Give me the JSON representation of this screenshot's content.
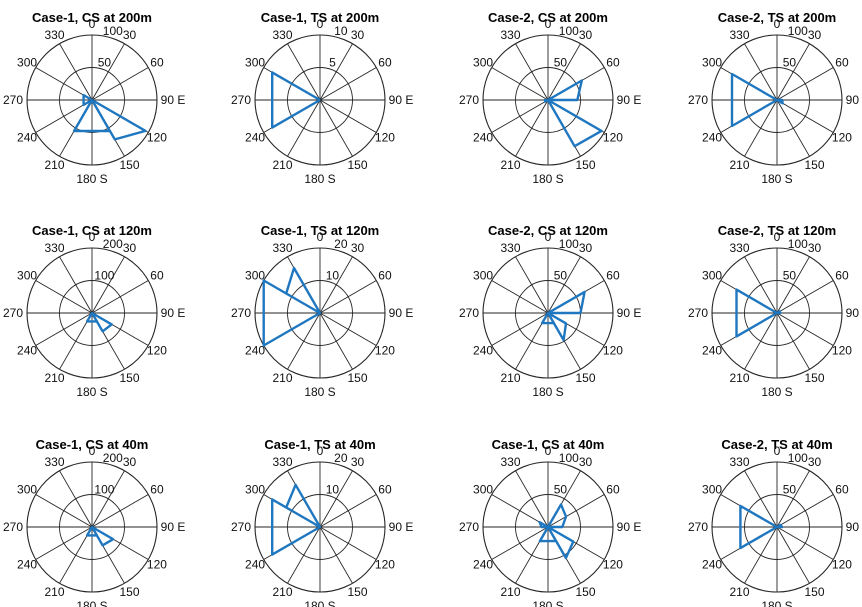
{
  "colors": {
    "series": "#1f77c0",
    "grid": "#262626"
  },
  "chart_data": [
    {
      "type": "polar",
      "title": "Case-1, CS at 200m",
      "r_ticks": [
        "50",
        "100"
      ],
      "r_max": 100,
      "angle_labels": [
        "0",
        "30",
        "60",
        "90 E",
        "120",
        "150",
        "180 S",
        "210",
        "240",
        "270",
        "300",
        "330"
      ],
      "series": [
        {
          "points": [
            [
              0,
              0
            ],
            [
              150,
              70
            ],
            [
              120,
              95
            ],
            [
              0,
              0
            ],
            [
              210,
              55
            ],
            [
              150,
              55
            ],
            [
              0,
              0
            ],
            [
              300,
              15
            ],
            [
              240,
              15
            ],
            [
              0,
              0
            ]
          ]
        }
      ]
    },
    {
      "type": "polar",
      "title": "Case-1, TS at 200m",
      "r_ticks": [
        "5",
        "10"
      ],
      "r_max": 10,
      "angle_labels": [
        "0",
        "30",
        "60",
        "90 E",
        "120",
        "150",
        "180 S",
        "210",
        "240",
        "270",
        "300",
        "330"
      ],
      "series": [
        {
          "points": [
            [
              0,
              0
            ],
            [
              300,
              8.5
            ],
            [
              240,
              8.5
            ],
            [
              0,
              0
            ]
          ]
        }
      ]
    },
    {
      "type": "polar",
      "title": "Case-2, CS at 200m",
      "r_ticks": [
        "50",
        "100"
      ],
      "r_max": 100,
      "angle_labels": [
        "0",
        "30",
        "60",
        "90 E",
        "120",
        "150",
        "180 S",
        "210",
        "240",
        "270",
        "300",
        "330"
      ],
      "series": [
        {
          "points": [
            [
              0,
              0
            ],
            [
              60,
              60
            ],
            [
              90,
              45
            ],
            [
              0,
              0
            ],
            [
              150,
              82
            ],
            [
              120,
              95
            ],
            [
              0,
              0
            ],
            [
              270,
              5
            ],
            [
              240,
              5
            ],
            [
              0,
              0
            ]
          ]
        }
      ]
    },
    {
      "type": "polar",
      "title": "Case-2, TS at 200m",
      "r_ticks": [
        "50",
        "100"
      ],
      "r_max": 100,
      "angle_labels": [
        "0",
        "30",
        "60",
        "90 E",
        "120",
        "150",
        "180 S",
        "210",
        "240",
        "270",
        "300",
        "330"
      ],
      "series": [
        {
          "points": [
            [
              0,
              0
            ],
            [
              300,
              80
            ],
            [
              240,
              80
            ],
            [
              0,
              0
            ],
            [
              120,
              10
            ],
            [
              90,
              8
            ],
            [
              0,
              0
            ]
          ]
        }
      ]
    },
    {
      "type": "polar",
      "title": "Case-1, CS at 120m",
      "r_ticks": [
        "100",
        "200"
      ],
      "r_max": 200,
      "angle_labels": [
        "0",
        "30",
        "60",
        "90 E",
        "120",
        "150",
        "180 S",
        "210",
        "240",
        "270",
        "300",
        "330"
      ],
      "series": [
        {
          "points": [
            [
              0,
              0
            ],
            [
              150,
              65
            ],
            [
              120,
              70
            ],
            [
              0,
              0
            ],
            [
              210,
              30
            ],
            [
              150,
              30
            ],
            [
              0,
              0
            ]
          ]
        }
      ]
    },
    {
      "type": "polar",
      "title": "Case-1, TS at 120m",
      "r_ticks": [
        "10",
        "20"
      ],
      "r_max": 20,
      "angle_labels": [
        "0",
        "30",
        "60",
        "90 E",
        "120",
        "150",
        "180 S",
        "210",
        "240",
        "270",
        "300",
        "330"
      ],
      "series": [
        {
          "points": [
            [
              0,
              0
            ],
            [
              330,
              16
            ],
            [
              300,
              12
            ],
            [
              0,
              0
            ],
            [
              300,
              20
            ],
            [
              240,
              20
            ],
            [
              0,
              0
            ]
          ]
        }
      ]
    },
    {
      "type": "polar",
      "title": "Case-2, CS at 120m",
      "r_ticks": [
        "50",
        "100"
      ],
      "r_max": 100,
      "angle_labels": [
        "0",
        "30",
        "60",
        "90 E",
        "120",
        "150",
        "180 S",
        "210",
        "240",
        "270",
        "300",
        "330"
      ],
      "series": [
        {
          "points": [
            [
              0,
              0
            ],
            [
              60,
              65
            ],
            [
              90,
              50
            ],
            [
              0,
              0
            ],
            [
              150,
              48
            ],
            [
              120,
              32
            ],
            [
              0,
              0
            ],
            [
              210,
              18
            ],
            [
              150,
              18
            ],
            [
              0,
              0
            ]
          ]
        }
      ]
    },
    {
      "type": "polar",
      "title": "Case-2, TS at 120m",
      "r_ticks": [
        "50",
        "100"
      ],
      "r_max": 100,
      "angle_labels": [
        "0",
        "30",
        "60",
        "90 E",
        "120",
        "150",
        "180 S",
        "210",
        "240",
        "270",
        "300",
        "330"
      ],
      "series": [
        {
          "points": [
            [
              0,
              0
            ],
            [
              300,
              72
            ],
            [
              240,
              72
            ],
            [
              0,
              0
            ],
            [
              90,
              5
            ],
            [
              60,
              5
            ],
            [
              0,
              0
            ]
          ]
        }
      ]
    },
    {
      "type": "polar",
      "title": "Case-1, CS at 40m",
      "r_ticks": [
        "100",
        "200"
      ],
      "r_max": 200,
      "angle_labels": [
        "0",
        "30",
        "60",
        "90 E",
        "120",
        "150",
        "180 S",
        "210",
        "240",
        "270",
        "300",
        "330"
      ],
      "series": [
        {
          "points": [
            [
              0,
              0
            ],
            [
              150,
              65
            ],
            [
              120,
              75
            ],
            [
              0,
              0
            ],
            [
              210,
              30
            ],
            [
              150,
              30
            ],
            [
              0,
              0
            ]
          ]
        }
      ]
    },
    {
      "type": "polar",
      "title": "Case-1, TS at 40m",
      "r_ticks": [
        "10",
        "20"
      ],
      "r_max": 20,
      "angle_labels": [
        "0",
        "30",
        "60",
        "90 E",
        "120",
        "150",
        "180 S",
        "210",
        "240",
        "270",
        "300",
        "330"
      ],
      "series": [
        {
          "points": [
            [
              0,
              0
            ],
            [
              330,
              15
            ],
            [
              300,
              12
            ],
            [
              0,
              0
            ],
            [
              300,
              17
            ],
            [
              240,
              17
            ],
            [
              0,
              0
            ]
          ]
        }
      ]
    },
    {
      "type": "polar",
      "title": "Case-1, CS at 40m",
      "r_ticks": [
        "50",
        "100"
      ],
      "r_max": 100,
      "angle_labels": [
        "0",
        "30",
        "60",
        "90 E",
        "120",
        "150",
        "180 S",
        "210",
        "240",
        "270",
        "300",
        "330"
      ],
      "series": [
        {
          "points": [
            [
              0,
              0
            ],
            [
              30,
              40
            ],
            [
              60,
              32
            ],
            [
              90,
              22
            ],
            [
              0,
              0
            ],
            [
              150,
              55
            ],
            [
              120,
              45
            ],
            [
              0,
              0
            ],
            [
              210,
              25
            ],
            [
              150,
              25
            ],
            [
              0,
              0
            ],
            [
              300,
              15
            ],
            [
              270,
              10
            ],
            [
              0,
              0
            ]
          ]
        }
      ]
    },
    {
      "type": "polar",
      "title": "Case-2, TS at 40m",
      "r_ticks": [
        "50",
        "100"
      ],
      "r_max": 100,
      "angle_labels": [
        "0",
        "30",
        "60",
        "90 E",
        "120",
        "150",
        "180 S",
        "210",
        "240",
        "270",
        "300",
        "330"
      ],
      "series": [
        {
          "points": [
            [
              0,
              0
            ],
            [
              300,
              65
            ],
            [
              240,
              65
            ],
            [
              0,
              0
            ],
            [
              90,
              8
            ],
            [
              60,
              6
            ],
            [
              0,
              0
            ]
          ]
        }
      ]
    }
  ]
}
